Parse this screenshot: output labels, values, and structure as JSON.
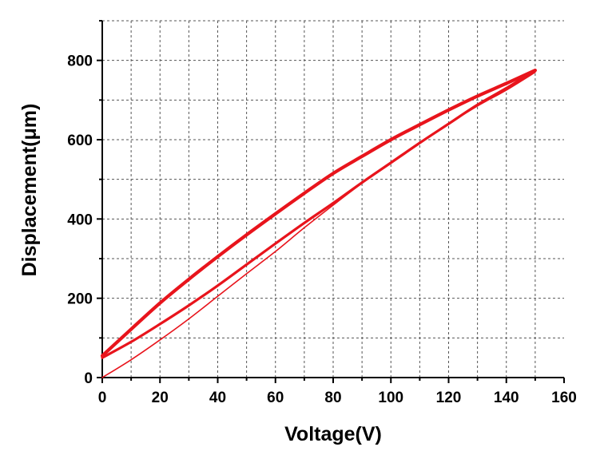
{
  "chart_data": {
    "type": "line",
    "xlabel": "Voltage(V)",
    "ylabel": "Displacement(μm)",
    "xlim": [
      0,
      160
    ],
    "ylim": [
      0,
      900
    ],
    "xticks": [
      0,
      20,
      40,
      60,
      80,
      100,
      120,
      140,
      160
    ],
    "yticks": [
      0,
      200,
      400,
      600,
      800
    ],
    "xtick_labels": [
      "0",
      "20",
      "40",
      "60",
      "80",
      "100",
      "120",
      "140",
      "160"
    ],
    "ytick_labels": [
      "0",
      "200",
      "400",
      "600",
      "800"
    ],
    "grid": true,
    "line_color": "#e8141c",
    "series": [
      {
        "role": "initial-ascent",
        "x": [
          0,
          10,
          20,
          30,
          40,
          50,
          60,
          70,
          80,
          90,
          100,
          110,
          120,
          130,
          140,
          150
        ],
        "y": [
          0,
          45,
          95,
          148,
          205,
          262,
          318,
          378,
          435,
          490,
          540,
          590,
          640,
          685,
          725,
          770
        ]
      },
      {
        "role": "loop-ascent",
        "x": [
          0,
          10,
          20,
          30,
          40,
          50,
          60,
          70,
          80,
          90,
          100,
          110,
          120,
          130,
          140,
          150
        ],
        "y": [
          50,
          90,
          135,
          182,
          232,
          285,
          338,
          390,
          440,
          492,
          542,
          592,
          640,
          688,
          730,
          775
        ]
      },
      {
        "role": "descent",
        "x": [
          150,
          140,
          130,
          120,
          110,
          100,
          90,
          80,
          70,
          60,
          50,
          40,
          30,
          20,
          10,
          0
        ],
        "y": [
          775,
          742,
          710,
          675,
          638,
          600,
          558,
          515,
          465,
          413,
          360,
          305,
          248,
          188,
          122,
          55
        ]
      }
    ]
  }
}
